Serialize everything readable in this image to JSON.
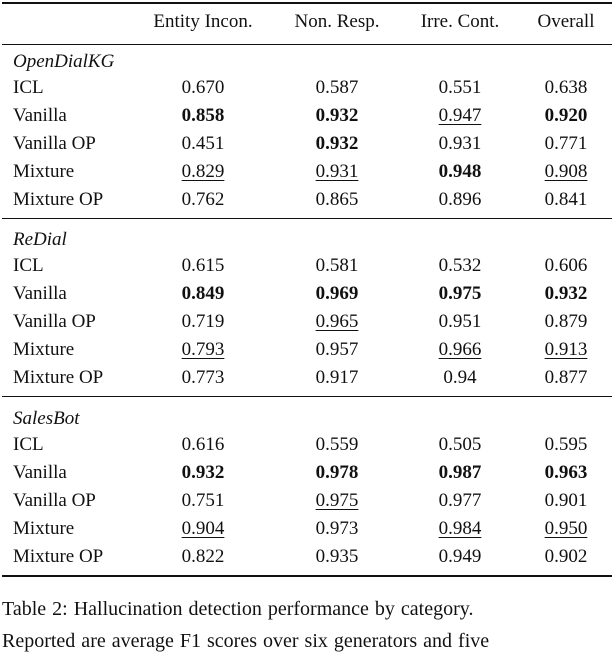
{
  "table": {
    "columns": [
      "Entity Incon.",
      "Non. Resp.",
      "Irre. Cont.",
      "Overall"
    ],
    "sections": [
      {
        "title": "OpenDialKG",
        "rows": [
          [
            "ICL",
            "0.670",
            "0.587",
            "0.551",
            "0.638"
          ],
          [
            "Vanilla",
            "0.858",
            "0.932",
            "0.947",
            "0.920"
          ],
          [
            "Vanilla OP",
            "0.451",
            "0.932",
            "0.931",
            "0.771"
          ],
          [
            "Mixture",
            "0.829",
            "0.931",
            "0.948",
            "0.908"
          ],
          [
            "Mixture OP",
            "0.762",
            "0.865",
            "0.896",
            "0.841"
          ]
        ],
        "bold": [
          [
            1,
            1
          ],
          [
            1,
            2
          ],
          [
            1,
            4
          ],
          [
            2,
            2
          ],
          [
            3,
            3
          ]
        ],
        "underline": [
          [
            1,
            3
          ],
          [
            3,
            1
          ],
          [
            3,
            2
          ],
          [
            3,
            4
          ]
        ]
      },
      {
        "title": "ReDial",
        "rows": [
          [
            "ICL",
            "0.615",
            "0.581",
            "0.532",
            "0.606"
          ],
          [
            "Vanilla",
            "0.849",
            "0.969",
            "0.975",
            "0.932"
          ],
          [
            "Vanilla OP",
            "0.719",
            "0.965",
            "0.951",
            "0.879"
          ],
          [
            "Mixture",
            "0.793",
            "0.957",
            "0.966",
            "0.913"
          ],
          [
            "Mixture OP",
            "0.773",
            "0.917",
            "0.94",
            "0.877"
          ]
        ],
        "bold": [
          [
            1,
            1
          ],
          [
            1,
            2
          ],
          [
            1,
            3
          ],
          [
            1,
            4
          ]
        ],
        "underline": [
          [
            2,
            2
          ],
          [
            3,
            1
          ],
          [
            3,
            3
          ],
          [
            3,
            4
          ]
        ]
      },
      {
        "title": "SalesBot",
        "rows": [
          [
            "ICL",
            "0.616",
            "0.559",
            "0.505",
            "0.595"
          ],
          [
            "Vanilla",
            "0.932",
            "0.978",
            "0.987",
            "0.963"
          ],
          [
            "Vanilla OP",
            "0.751",
            "0.975",
            "0.977",
            "0.901"
          ],
          [
            "Mixture",
            "0.904",
            "0.973",
            "0.984",
            "0.950"
          ],
          [
            "Mixture OP",
            "0.822",
            "0.935",
            "0.949",
            "0.902"
          ]
        ],
        "bold": [
          [
            1,
            1
          ],
          [
            1,
            2
          ],
          [
            1,
            3
          ],
          [
            1,
            4
          ]
        ],
        "underline": [
          [
            2,
            2
          ],
          [
            3,
            1
          ],
          [
            3,
            3
          ],
          [
            3,
            4
          ]
        ]
      }
    ]
  },
  "caption": [
    "Table 2:  Hallucination detection performance by category.",
    "Reported are average F1 scores over six generators and five"
  ]
}
